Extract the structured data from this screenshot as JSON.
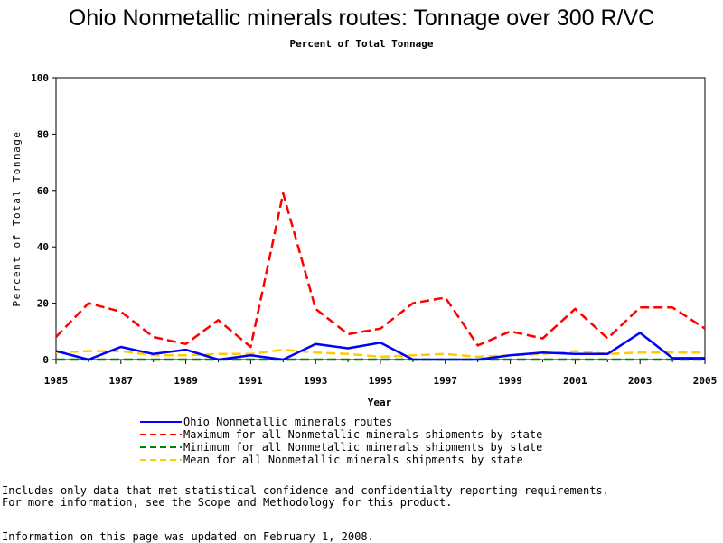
{
  "chart_data": {
    "type": "line",
    "title": "Ohio Nonmetallic minerals routes: Tonnage over 300 R/VC",
    "subtitle": "Percent of Total Tonnage",
    "xlabel": "Year",
    "ylabel": "Percent of Total Tonnage",
    "xlim": [
      1985,
      2005
    ],
    "ylim": [
      0,
      100
    ],
    "x_ticks": [
      "1985",
      "1987",
      "1989",
      "1991",
      "1993",
      "1995",
      "1997",
      "1999",
      "2001",
      "2003",
      "2005"
    ],
    "y_ticks": [
      "0",
      "20",
      "40",
      "60",
      "80",
      "100"
    ],
    "x": [
      1985,
      1986,
      1987,
      1988,
      1989,
      1990,
      1991,
      1992,
      1993,
      1994,
      1995,
      1996,
      1997,
      1998,
      1999,
      2000,
      2001,
      2002,
      2003,
      2004,
      2005
    ],
    "series": [
      {
        "name": "Ohio Nonmetallic minerals routes",
        "color": "#0000ff",
        "dash": "solid",
        "values": [
          3,
          0,
          4.5,
          2,
          3.5,
          0,
          1.5,
          0,
          5.5,
          4,
          6,
          0,
          0,
          0,
          1.5,
          2.5,
          2,
          2,
          9.5,
          0.5,
          0.5
        ]
      },
      {
        "name": "Maximum for all Nonmetallic minerals shipments by state",
        "color": "#ff0000",
        "dash": "dashed",
        "values": [
          8,
          20,
          17,
          8,
          5.5,
          14,
          4.5,
          59,
          18,
          9,
          11,
          20,
          22,
          5,
          10,
          7.5,
          18,
          7.5,
          18.5,
          18.5,
          11
        ]
      },
      {
        "name": "Minimum for all Nonmetallic minerals shipments by state",
        "color": "#007f00",
        "dash": "dashed",
        "values": [
          0,
          0,
          0,
          0,
          0,
          0,
          0,
          0,
          0,
          0,
          0,
          0,
          0,
          0,
          0,
          0,
          0,
          0,
          0,
          0,
          0
        ]
      },
      {
        "name": "Mean for all Nonmetallic minerals shipments by state",
        "color": "#ffcc00",
        "dash": "dashed",
        "values": [
          2.5,
          3,
          3,
          1.5,
          1.5,
          2,
          2,
          3.5,
          2.5,
          2,
          1,
          1.5,
          2,
          1,
          1.5,
          2,
          3,
          2,
          2.5,
          2.5,
          2.5
        ]
      }
    ],
    "legend_position": "bottom",
    "grid": false
  },
  "footnotes": {
    "line1": "Includes only data that met statistical confidence and confidentialty reporting requirements.",
    "line2": "For more information, see the Scope and Methodology for this product.",
    "updated": "Information on this page was updated on February 1, 2008."
  }
}
